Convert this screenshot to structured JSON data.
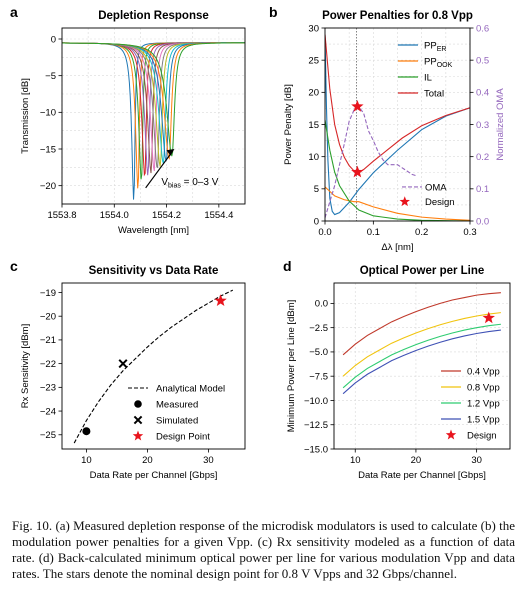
{
  "chart_data": [
    {
      "panel": "a",
      "type": "line",
      "title": "Depletion Response",
      "xlabel": "Wavelength [nm]",
      "ylabel": "Transmission [dB]",
      "xlim": [
        1553.8,
        1554.5
      ],
      "ylim": [
        -22.5,
        1.5
      ],
      "xticks": [
        1553.8,
        1554.0,
        1554.2,
        1554.4
      ],
      "yticks": [
        0,
        -5,
        -10,
        -15,
        -20
      ],
      "grid": true,
      "annotation": {
        "text_main": "V",
        "text_sub": "bias",
        "text_tail": " = 0–3 V"
      },
      "resonance_centers": [
        1554.075,
        1554.091,
        1554.104,
        1554.117,
        1554.129,
        1554.141,
        1554.153,
        1554.165,
        1554.176,
        1554.188,
        1554.199,
        1554.21,
        1554.221
      ],
      "resonance_depths": [
        -21.8,
        -20.2,
        -19.0,
        -18.4,
        -18.2,
        -17.8,
        -17.5,
        -17.2,
        -16.9,
        -16.5,
        -16.2,
        -15.8,
        -15.5
      ],
      "colors": [
        "#1f77b4",
        "#ff7f0e",
        "#2ca02c",
        "#d62728",
        "#9467bd",
        "#8c564b",
        "#e377c2",
        "#7f7f7f",
        "#bcbd22",
        "#17becf",
        "#1f77b4",
        "#ff7f0e",
        "#2ca02c"
      ]
    },
    {
      "panel": "b",
      "type": "line",
      "title": "Power Penalties for 0.8 Vpp",
      "xlabel": "Δλ [nm]",
      "ylabel": "Power Penalty [dB]",
      "ylabel_right": "Normalized OMA",
      "xlim": [
        0,
        0.3
      ],
      "ylim": [
        0,
        30
      ],
      "ylim_right": [
        0,
        0.6
      ],
      "xticks": [
        0.0,
        0.1,
        0.2,
        0.3
      ],
      "yticks": [
        0,
        5,
        10,
        15,
        20,
        25,
        30
      ],
      "yticks_right": [
        0.0,
        0.1,
        0.2,
        0.3,
        0.4,
        0.5,
        0.6
      ],
      "vline_x": 0.065,
      "series": [
        {
          "name": "PP",
          "sub": "ER",
          "color": "#1f77b4",
          "x": [
            0.0,
            0.003,
            0.006,
            0.01,
            0.015,
            0.02,
            0.03,
            0.04,
            0.05,
            0.07,
            0.1,
            0.15,
            0.2,
            0.25,
            0.3
          ],
          "y": [
            28.9,
            17.8,
            9.5,
            3.5,
            1.5,
            1.0,
            1.3,
            2.1,
            2.9,
            4.9,
            7.5,
            11.0,
            14.2,
            16.3,
            17.6
          ]
        },
        {
          "name": "PP",
          "sub": "OOK",
          "color": "#ff7f0e",
          "x": [
            0.0,
            0.01,
            0.02,
            0.04,
            0.06,
            0.07,
            0.1,
            0.15,
            0.2,
            0.25,
            0.3
          ],
          "y": [
            5.3,
            4.6,
            3.9,
            3.3,
            3.0,
            3.0,
            2.2,
            1.2,
            0.6,
            0.3,
            0.1
          ]
        },
        {
          "name": "IL",
          "sub": "",
          "color": "#2ca02c",
          "x": [
            0.0,
            0.01,
            0.02,
            0.03,
            0.05,
            0.07,
            0.1,
            0.15,
            0.2,
            0.25,
            0.3
          ],
          "y": [
            15.7,
            11.0,
            7.6,
            5.5,
            3.1,
            1.7,
            0.8,
            0.3,
            0.1,
            0.05,
            0.0
          ]
        },
        {
          "name": "Total",
          "sub": "",
          "color": "#d62728",
          "x": [
            0.0,
            0.01,
            0.02,
            0.03,
            0.04,
            0.05,
            0.06,
            0.07,
            0.08,
            0.1,
            0.13,
            0.16,
            0.2,
            0.25,
            0.3
          ],
          "y": [
            29.0,
            20.5,
            15.0,
            11.9,
            9.9,
            8.6,
            7.8,
            7.6,
            8.0,
            9.3,
            11.1,
            12.9,
            14.8,
            16.4,
            17.6
          ]
        }
      ],
      "oma": {
        "name": "OMA",
        "color": "#9467bd",
        "x": [
          0.0,
          0.02,
          0.04,
          0.05,
          0.06,
          0.07,
          0.08,
          0.09,
          0.1,
          0.11,
          0.12,
          0.13,
          0.15,
          0.17,
          0.18,
          0.19
        ],
        "y": [
          0.01,
          0.11,
          0.24,
          0.31,
          0.345,
          0.355,
          0.335,
          0.28,
          0.25,
          0.215,
          0.19,
          0.175,
          0.175,
          0.155,
          0.145,
          0.14
        ]
      },
      "design_points": [
        {
          "x": 0.067,
          "y": 17.8
        },
        {
          "x": 0.165,
          "y": 3.0
        }
      ],
      "oma_label": "OMA",
      "design_label": "Design"
    },
    {
      "panel": "c",
      "type": "line",
      "title": "Sensitivity vs Data Rate",
      "xlabel": "Data Rate per Channel [Gbps]",
      "ylabel": "Rx Sensitivity [dBm]",
      "xlim": [
        6,
        36
      ],
      "ylim": [
        -25.6,
        -18.6
      ],
      "xticks": [
        10,
        20,
        30
      ],
      "yticks": [
        -19,
        -20,
        -21,
        -22,
        -23,
        -24,
        -25
      ],
      "analytical": {
        "x": [
          8,
          10,
          12,
          14,
          16,
          18,
          20,
          22,
          24,
          26,
          28,
          30,
          32,
          34
        ],
        "y": [
          -25.35,
          -24.4,
          -23.6,
          -22.9,
          -22.3,
          -21.8,
          -21.3,
          -20.85,
          -20.45,
          -20.1,
          -19.75,
          -19.45,
          -19.15,
          -18.9
        ]
      },
      "measured": [
        {
          "x": 10,
          "y": -24.85
        }
      ],
      "simulated": [
        {
          "x": 16,
          "y": -22.0
        }
      ],
      "design": [
        {
          "x": 32,
          "y": -19.35
        }
      ],
      "legend": [
        "Analytical Model",
        "Measured",
        "Simulated",
        "Design Point"
      ]
    },
    {
      "panel": "d",
      "type": "line",
      "title": "Optical Power per Line",
      "xlabel": "Data Rate per Channel [Gbps]",
      "ylabel": "Minimum Power per Line [dBm]",
      "xlim": [
        6.5,
        35.5
      ],
      "ylim": [
        -15,
        2.1
      ],
      "xticks": [
        10,
        20,
        30
      ],
      "yticks": [
        0.0,
        -2.5,
        -5.0,
        -7.5,
        -10.0,
        -12.5,
        -15.0
      ],
      "grid": true,
      "series": [
        {
          "name": "0.4 Vpp",
          "color": "#c0392b",
          "x": [
            8,
            10,
            12,
            14,
            16,
            18,
            20,
            22,
            24,
            26,
            28,
            30,
            32,
            34
          ],
          "y": [
            -5.3,
            -4.2,
            -3.3,
            -2.6,
            -1.9,
            -1.35,
            -0.85,
            -0.4,
            0.0,
            0.35,
            0.6,
            0.85,
            1.0,
            1.1
          ]
        },
        {
          "name": "0.8 Vpp",
          "color": "#f1c40f",
          "x": [
            8,
            10,
            12,
            14,
            16,
            18,
            20,
            22,
            24,
            26,
            28,
            30,
            32,
            34
          ],
          "y": [
            -7.5,
            -6.4,
            -5.5,
            -4.8,
            -4.1,
            -3.55,
            -3.05,
            -2.6,
            -2.2,
            -1.85,
            -1.55,
            -1.3,
            -1.1,
            -0.95
          ]
        },
        {
          "name": "1.2 Vpp",
          "color": "#2ecc71",
          "x": [
            8,
            10,
            12,
            14,
            16,
            18,
            20,
            22,
            24,
            26,
            28,
            30,
            32,
            34
          ],
          "y": [
            -8.7,
            -7.6,
            -6.7,
            -6.0,
            -5.3,
            -4.75,
            -4.25,
            -3.8,
            -3.4,
            -3.05,
            -2.75,
            -2.5,
            -2.3,
            -2.15
          ]
        },
        {
          "name": "1.5 Vpp",
          "color": "#3f51b5",
          "x": [
            8,
            10,
            12,
            14,
            16,
            18,
            20,
            22,
            24,
            26,
            28,
            30,
            32,
            34
          ],
          "y": [
            -9.3,
            -8.2,
            -7.3,
            -6.6,
            -5.9,
            -5.35,
            -4.85,
            -4.4,
            -4.0,
            -3.65,
            -3.35,
            -3.1,
            -2.9,
            -2.75
          ]
        }
      ],
      "design": [
        {
          "x": 32,
          "y": -1.5
        }
      ],
      "design_label": "Design"
    }
  ],
  "panel_labels": [
    "a",
    "b",
    "c",
    "d"
  ],
  "caption": "Fig. 10.  (a) Measured depletion response of the microdisk modulators is used to calculate (b) the modulation power penalties for a given Vpp. (c) Rx sensitivity modeled as a function of data rate. (d) Back-calculated minimum optical power per line for various modulation Vpp and data rates. The stars denote the nominal design point for 0.8 V Vpps and 32 Gbps/channel.",
  "colors": {
    "axis": "#000000",
    "grid": "#d9d9d9",
    "star": "#e8141d",
    "oma": "#9467bd",
    "ylabel_right": "#9467bd"
  }
}
